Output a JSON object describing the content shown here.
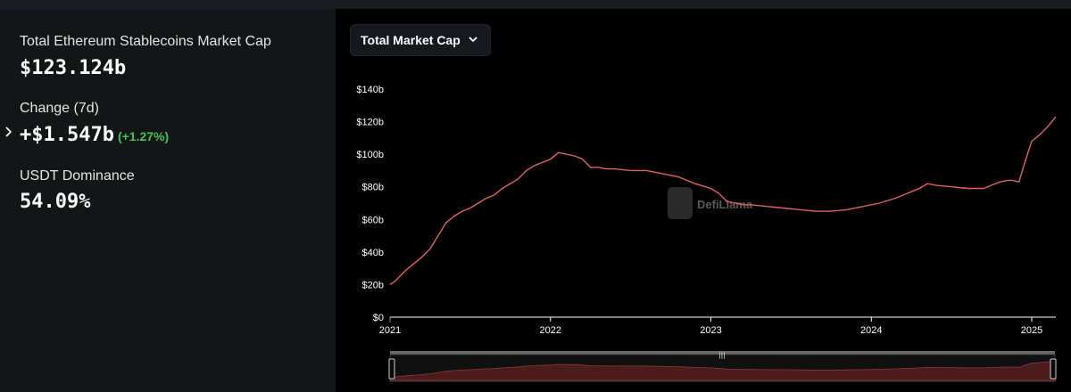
{
  "stats": {
    "market_cap_label": "Total Ethereum Stablecoins Market Cap",
    "market_cap_value": "$123.124b",
    "change_label": "Change (7d)",
    "change_value": "+$1.547b",
    "change_pct": "(+1.27%)",
    "dominance_label": "USDT Dominance",
    "dominance_value": "54.09%"
  },
  "dropdown": {
    "label": "Total Market Cap"
  },
  "watermark": "DefiLlama",
  "colors": {
    "line": "#e06262",
    "positive": "#3fc35a",
    "panel": "#131617",
    "chart_bg": "#000000"
  },
  "chart_data": {
    "type": "line",
    "title": "",
    "xlabel": "",
    "ylabel": "",
    "y_tick_labels": [
      "$0",
      "$20b",
      "$40b",
      "$60b",
      "$80b",
      "$100b",
      "$120b",
      "$140b"
    ],
    "x_tick_labels": [
      "2021",
      "2022",
      "2023",
      "2024",
      "2025"
    ],
    "ylim": [
      0,
      140
    ],
    "xlim": [
      2021.0,
      2025.15
    ],
    "grid": false,
    "series": [
      {
        "x": [
          2021.0,
          2021.03,
          2021.06,
          2021.1,
          2021.15,
          2021.2,
          2021.25,
          2021.3,
          2021.35,
          2021.4,
          2021.45,
          2021.5,
          2021.55,
          2021.6,
          2021.65,
          2021.7,
          2021.75,
          2021.8,
          2021.85,
          2021.9,
          2021.95,
          2022.0,
          2022.05,
          2022.1,
          2022.15,
          2022.2,
          2022.25,
          2022.3,
          2022.35,
          2022.4,
          2022.5,
          2022.6,
          2022.7,
          2022.8,
          2022.9,
          2023.0,
          2023.05,
          2023.1,
          2023.15,
          2023.2,
          2023.25,
          2023.35,
          2023.45,
          2023.55,
          2023.65,
          2023.75,
          2023.85,
          2023.95,
          2024.05,
          2024.15,
          2024.2,
          2024.25,
          2024.3,
          2024.35,
          2024.4,
          2024.5,
          2024.6,
          2024.7,
          2024.75,
          2024.8,
          2024.85,
          2024.88,
          2024.92,
          2024.96,
          2025.0,
          2025.05,
          2025.1,
          2025.15
        ],
        "y": [
          20,
          22,
          25,
          29,
          33,
          37,
          42,
          50,
          58,
          62,
          65,
          67,
          70,
          73,
          75,
          79,
          82,
          85,
          90,
          93,
          95,
          97,
          101,
          100,
          99,
          97,
          92,
          92,
          91,
          91,
          90,
          90,
          88,
          86,
          82,
          79,
          76,
          71,
          70,
          69,
          69,
          68,
          67,
          66,
          65,
          65,
          66,
          68,
          70,
          73,
          75,
          77,
          79,
          82,
          81,
          80,
          79,
          79,
          81,
          83,
          84,
          84,
          83,
          96,
          108,
          112,
          117,
          123
        ]
      }
    ]
  }
}
